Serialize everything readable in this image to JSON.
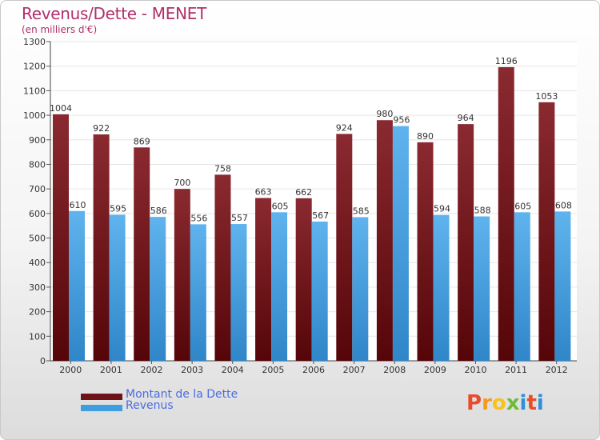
{
  "chart_data": {
    "type": "bar",
    "title": "Revenus/Dette - MENET",
    "subtitle": "(en milliers d'€)",
    "categories": [
      "2000",
      "2001",
      "2002",
      "2003",
      "2004",
      "2005",
      "2006",
      "2007",
      "2008",
      "2009",
      "2010",
      "2011",
      "2012"
    ],
    "series": [
      {
        "name": "Montant de la Dette",
        "color": "#6e1418",
        "values": [
          1004,
          922,
          869,
          700,
          758,
          663,
          662,
          924,
          980,
          890,
          964,
          1196,
          1053
        ]
      },
      {
        "name": "Revenus",
        "color": "#3f9ee0",
        "values": [
          610,
          595,
          586,
          556,
          557,
          605,
          567,
          585,
          956,
          594,
          588,
          605,
          608
        ]
      }
    ],
    "ylim": [
      0,
      1300
    ],
    "yticks": [
      0,
      100,
      200,
      300,
      400,
      500,
      600,
      700,
      800,
      900,
      1000,
      1100,
      1200,
      1300
    ],
    "grid": true,
    "legend_position": "bottom-left"
  },
  "logo": {
    "text": "Proxiti",
    "colors": [
      "#e84d2a",
      "#f39a1f",
      "#f6c21c",
      "#6dbb3a",
      "#2f8fd8",
      "#e84d2a",
      "#2f8fd8"
    ]
  }
}
